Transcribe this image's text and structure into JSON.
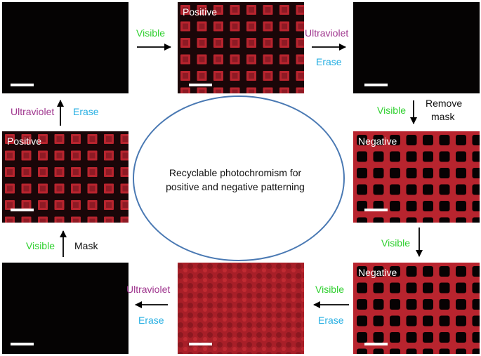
{
  "panels": {
    "top_middle": {
      "label": "Positive"
    },
    "middle_left": {
      "label": "Positive"
    },
    "middle_right": {
      "label": "Negative"
    },
    "bottom_right": {
      "label": "Negative"
    }
  },
  "steps": {
    "top_left_to_top_middle": [
      "Visible"
    ],
    "top_middle_to_top_right": [
      "Ultraviolet",
      "Erase"
    ],
    "top_right_to_middle_right": [
      "Visible",
      "Remove",
      "mask"
    ],
    "middle_right_to_bottom_right": [
      "Visible"
    ],
    "bottom_right_to_bottom_middle": [
      "Visible",
      "Erase"
    ],
    "bottom_middle_to_bottom_left": [
      "Ultraviolet",
      "Erase"
    ],
    "bottom_left_to_middle_left": [
      "Visible",
      "Mask"
    ],
    "middle_left_to_top_left": [
      "Ultraviolet",
      "Erase"
    ]
  },
  "center": {
    "line1": "Recyclable photochromism for",
    "line2": "positive and negative patterning"
  },
  "colors": {
    "visible": "#2fd02f",
    "ultraviolet": "#a0378f",
    "erase": "#24aee2",
    "pattern_red": "#b8242e",
    "ellipse": "#4a79b3"
  }
}
